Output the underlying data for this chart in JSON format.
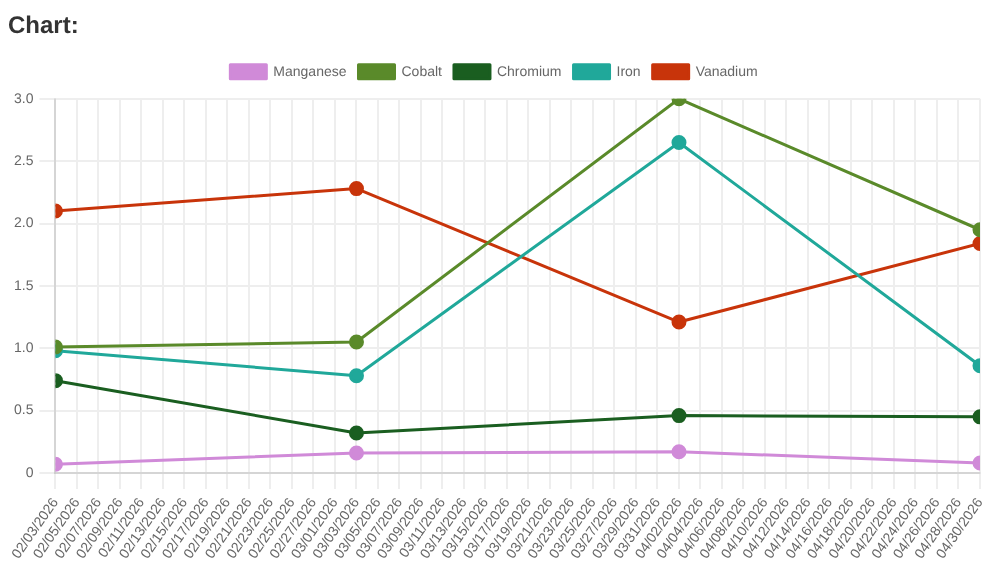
{
  "chart_data": {
    "type": "line",
    "title": "Chart:",
    "x": [
      "2026-02-03",
      "2026-03-03",
      "2026-04-02",
      "2026-04-30"
    ],
    "series": [
      {
        "name": "Manganese",
        "color": "#d08ad8",
        "values": [
          0.07,
          0.16,
          0.17,
          0.08
        ]
      },
      {
        "name": "Cobalt",
        "color": "#5a8a2a",
        "values": [
          1.01,
          1.05,
          3.0,
          1.95
        ]
      },
      {
        "name": "Chromium",
        "color": "#1a5e20",
        "values": [
          0.74,
          0.32,
          0.46,
          0.45
        ]
      },
      {
        "name": "Iron",
        "color": "#20a89a",
        "values": [
          0.98,
          0.78,
          2.65,
          0.86
        ]
      },
      {
        "name": "Vanadium",
        "color": "#c8340a",
        "values": [
          2.1,
          2.28,
          1.21,
          1.84
        ]
      }
    ],
    "xlim": [
      "2026-02-03",
      "2026-04-30"
    ],
    "xticks": [
      {
        "value": "2026-02-03",
        "label": "02/03/2026"
      },
      {
        "value": "2026-02-05",
        "label": "02/05/2026"
      },
      {
        "value": "2026-02-07",
        "label": "02/07/2026"
      },
      {
        "value": "2026-02-09",
        "label": "02/09/2026"
      },
      {
        "value": "2026-02-11",
        "label": "02/11/2026"
      },
      {
        "value": "2026-02-13",
        "label": "02/13/2026"
      },
      {
        "value": "2026-02-15",
        "label": "02/15/2026"
      },
      {
        "value": "2026-02-17",
        "label": "02/17/2026"
      },
      {
        "value": "2026-02-19",
        "label": "02/19/2026"
      },
      {
        "value": "2026-02-21",
        "label": "02/21/2026"
      },
      {
        "value": "2026-02-23",
        "label": "02/23/2026"
      },
      {
        "value": "2026-02-25",
        "label": "02/25/2026"
      },
      {
        "value": "2026-02-27",
        "label": "02/27/2026"
      },
      {
        "value": "2026-03-01",
        "label": "03/01/2026"
      },
      {
        "value": "2026-03-03",
        "label": "03/03/2026"
      },
      {
        "value": "2026-03-05",
        "label": "03/05/2026"
      },
      {
        "value": "2026-03-07",
        "label": "03/07/2026"
      },
      {
        "value": "2026-03-09",
        "label": "03/09/2026"
      },
      {
        "value": "2026-03-11",
        "label": "03/11/2026"
      },
      {
        "value": "2026-03-13",
        "label": "03/13/2026"
      },
      {
        "value": "2026-03-15",
        "label": "03/15/2026"
      },
      {
        "value": "2026-03-17",
        "label": "03/17/2026"
      },
      {
        "value": "2026-03-19",
        "label": "03/19/2026"
      },
      {
        "value": "2026-03-21",
        "label": "03/21/2026"
      },
      {
        "value": "2026-03-23",
        "label": "03/23/2026"
      },
      {
        "value": "2026-03-25",
        "label": "03/25/2026"
      },
      {
        "value": "2026-03-27",
        "label": "03/27/2026"
      },
      {
        "value": "2026-03-29",
        "label": "03/29/2026"
      },
      {
        "value": "2026-03-31",
        "label": "03/31/2026"
      },
      {
        "value": "2026-04-02",
        "label": "04/02/2026"
      },
      {
        "value": "2026-04-04",
        "label": "04/04/2026"
      },
      {
        "value": "2026-04-06",
        "label": "04/06/2026"
      },
      {
        "value": "2026-04-08",
        "label": "04/08/2026"
      },
      {
        "value": "2026-04-10",
        "label": "04/10/2026"
      },
      {
        "value": "2026-04-12",
        "label": "04/12/2026"
      },
      {
        "value": "2026-04-14",
        "label": "04/14/2026"
      },
      {
        "value": "2026-04-16",
        "label": "04/16/2026"
      },
      {
        "value": "2026-04-18",
        "label": "04/18/2026"
      },
      {
        "value": "2026-04-20",
        "label": "04/20/2026"
      },
      {
        "value": "2026-04-22",
        "label": "04/22/2026"
      },
      {
        "value": "2026-04-24",
        "label": "04/24/2026"
      },
      {
        "value": "2026-04-26",
        "label": "04/26/2026"
      },
      {
        "value": "2026-04-28",
        "label": "04/28/2026"
      },
      {
        "value": "2026-04-30",
        "label": "04/30/2026"
      }
    ],
    "ylim": [
      0,
      3
    ],
    "yticks": [
      0,
      {
        "value": 0.5,
        "label": "0.5"
      },
      {
        "value": 1,
        "label": "1.0"
      },
      {
        "value": 1.5,
        "label": "1.5"
      },
      {
        "value": 2,
        "label": "2.0"
      },
      {
        "value": 2.5,
        "label": "2.5"
      },
      {
        "value": 3,
        "label": "3.0"
      }
    ],
    "grid": true,
    "legend": "top",
    "marker": "circle",
    "line_style": "solid"
  }
}
